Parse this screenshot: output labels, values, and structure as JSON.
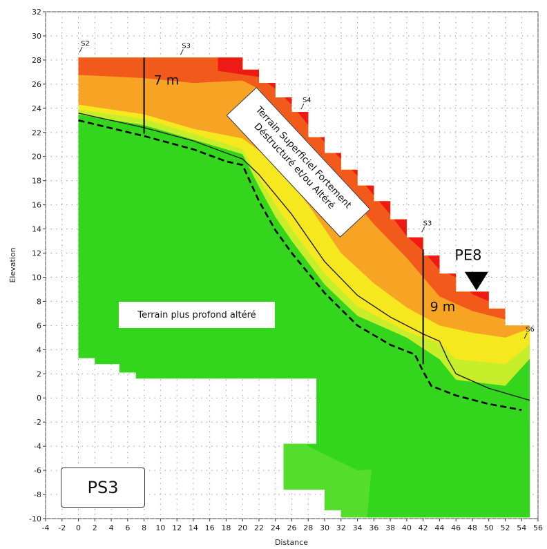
{
  "chart_data": {
    "type": "heatmap",
    "title": "",
    "xlabel": "Distance",
    "ylabel": "Elevation",
    "xlim": [
      -4,
      56
    ],
    "ylim": [
      -10,
      32
    ],
    "x_ticks": [
      -4,
      -2,
      0,
      2,
      4,
      6,
      8,
      10,
      12,
      14,
      16,
      18,
      20,
      22,
      24,
      26,
      28,
      30,
      32,
      34,
      36,
      38,
      40,
      42,
      44,
      46,
      48,
      50,
      52,
      54,
      56
    ],
    "y_ticks": [
      -10,
      -8,
      -6,
      -4,
      -2,
      0,
      2,
      4,
      6,
      8,
      10,
      12,
      14,
      16,
      18,
      20,
      22,
      24,
      26,
      28,
      30,
      32
    ],
    "grid": true,
    "colors": {
      "red": "#ee1a16",
      "orange_red": "#f25a1c",
      "orange": "#f7a425",
      "yellow": "#f6e81e",
      "yellow_green": "#c6ee2a",
      "green": "#33d61d",
      "light_green": "#55dd2e"
    },
    "topography": [
      [
        0,
        28.2
      ],
      [
        20,
        28.2
      ],
      [
        20,
        27.2
      ],
      [
        22,
        27.2
      ],
      [
        22,
        26.1
      ],
      [
        24,
        26.1
      ],
      [
        24,
        24.9
      ],
      [
        26,
        24.9
      ],
      [
        26,
        23.7
      ],
      [
        28,
        23.7
      ],
      [
        28,
        21.6
      ],
      [
        30,
        21.6
      ],
      [
        30,
        20.3
      ],
      [
        32,
        20.3
      ],
      [
        32,
        18.9
      ],
      [
        34,
        18.9
      ],
      [
        34,
        17.6
      ],
      [
        36,
        17.6
      ],
      [
        36,
        16.3
      ],
      [
        38,
        16.3
      ],
      [
        38,
        14.8
      ],
      [
        40,
        14.8
      ],
      [
        40,
        13.3
      ],
      [
        42,
        13.3
      ],
      [
        42,
        11.8
      ],
      [
        44,
        11.8
      ],
      [
        44,
        10.3
      ],
      [
        46,
        10.3
      ],
      [
        46,
        8.8
      ],
      [
        50,
        8.8
      ],
      [
        50,
        7.4
      ],
      [
        52,
        7.4
      ],
      [
        52,
        6
      ],
      [
        55,
        6
      ]
    ],
    "bottom_profile": [
      [
        0,
        3.3
      ],
      [
        2,
        3.3
      ],
      [
        2,
        2.8
      ],
      [
        5,
        2.8
      ],
      [
        5,
        2.1
      ],
      [
        7,
        2.1
      ],
      [
        7,
        1.6
      ],
      [
        29,
        1.6
      ],
      [
        29,
        -3.8
      ],
      [
        25,
        -3.8
      ],
      [
        25,
        -7.6
      ],
      [
        30,
        -7.6
      ],
      [
        30,
        -9.3
      ],
      [
        32,
        -9.3
      ],
      [
        32,
        -9.9
      ],
      [
        55,
        -9.9
      ]
    ],
    "solid_interface": [
      [
        0,
        23.6
      ],
      [
        8,
        22.4
      ],
      [
        14,
        21.3
      ],
      [
        18,
        20.3
      ],
      [
        20,
        19.8
      ],
      [
        22,
        18.5
      ],
      [
        26,
        15.2
      ],
      [
        30,
        11.3
      ],
      [
        34,
        8.5
      ],
      [
        38,
        6.7
      ],
      [
        42,
        5.3
      ],
      [
        44,
        4.7
      ],
      [
        45,
        3.2
      ],
      [
        46,
        2
      ],
      [
        50,
        0.8
      ],
      [
        55,
        -0.2
      ]
    ],
    "dashed_interface": [
      [
        0,
        23
      ],
      [
        8,
        21.7
      ],
      [
        14,
        20.6
      ],
      [
        18,
        19.6
      ],
      [
        20,
        19.3
      ],
      [
        22,
        16.3
      ],
      [
        24,
        13.9
      ],
      [
        26,
        12
      ],
      [
        30,
        8.7
      ],
      [
        34,
        6
      ],
      [
        38,
        4.4
      ],
      [
        41,
        3.6
      ],
      [
        42,
        2.2
      ],
      [
        43,
        1
      ],
      [
        46,
        0.2
      ],
      [
        50,
        -0.5
      ],
      [
        54,
        -1
      ]
    ],
    "boreholes": [
      {
        "label": "S2",
        "x": 0.3,
        "y": 29.2
      },
      {
        "label": "S3",
        "x": 12.6,
        "y": 29
      },
      {
        "label": "S4",
        "x": 27.3,
        "y": 24.5
      },
      {
        "label": "S3",
        "x": 42,
        "y": 14.3
      },
      {
        "label": "S6",
        "x": 54.5,
        "y": 5.5
      }
    ],
    "thickness_marks": [
      {
        "label": "7 m",
        "x": 8,
        "y_top": 28.2,
        "y_bottom": 21.9
      },
      {
        "label": "9 m",
        "x": 42,
        "y_top": 12.3,
        "y_bottom": 2.8
      }
    ],
    "marker": {
      "label": "PE8",
      "x": 48.5,
      "y": 8.9
    },
    "annotations": {
      "surficial_line1": "Terrain Superficiel Fortement",
      "surficial_line2": "Déstructuré et/ou Altéré",
      "deep": "Terrain plus profond altéré",
      "panel": "PS3"
    }
  }
}
